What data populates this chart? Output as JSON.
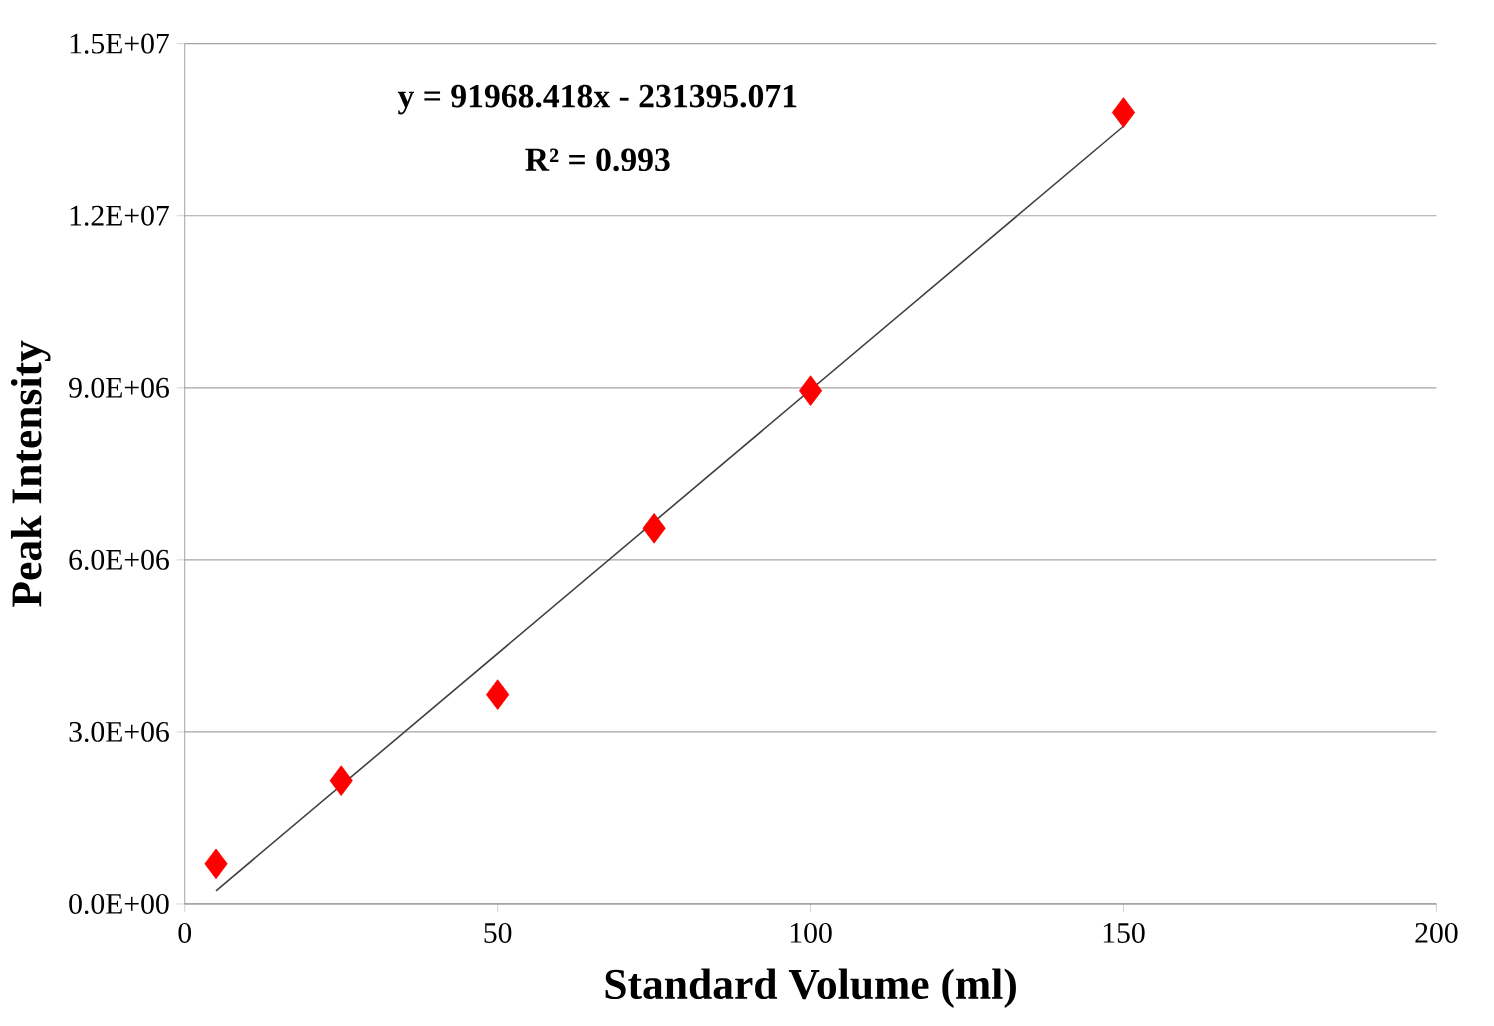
{
  "chart_data": {
    "type": "scatter",
    "xlabel": "Standard Volume (ml)",
    "ylabel": "Peak Intensity",
    "xlim": [
      0,
      200
    ],
    "xticks": [
      0,
      50,
      100,
      150,
      200
    ],
    "ylim": [
      0,
      15000000
    ],
    "yticks": [
      {
        "value": 0,
        "label": "0.0E+00"
      },
      {
        "value": 3000000,
        "label": "3.0E+06"
      },
      {
        "value": 6000000,
        "label": "6.0E+06"
      },
      {
        "value": 9000000,
        "label": "9.0E+06"
      },
      {
        "value": 12000000,
        "label": "1.2E+07"
      },
      {
        "value": 15000000,
        "label": "1.5E+07"
      }
    ],
    "grid": "y",
    "series": [
      {
        "color": "#ff0000",
        "marker": "diamond",
        "x": [
          5,
          25,
          50,
          75,
          100,
          150
        ],
        "values": [
          700000,
          2150000,
          3650000,
          6550000,
          8950000,
          13800000
        ]
      },
      {
        "type": "line",
        "color": "#404040",
        "line_style": "solid",
        "x": [
          5,
          150
        ],
        "values": [
          230000,
          13560000
        ]
      }
    ],
    "annotations": [
      "y = 91968.418x - 231395.071",
      "R² = 0.993"
    ]
  }
}
